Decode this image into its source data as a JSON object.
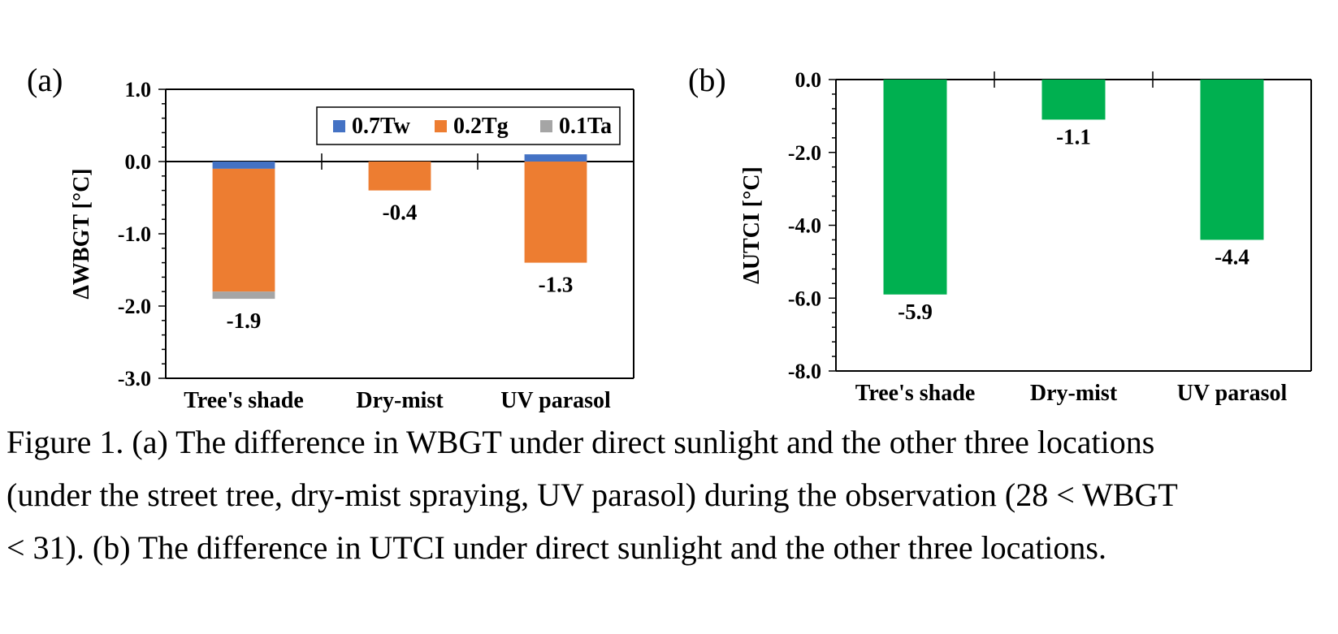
{
  "colors": {
    "tw": "#4472c4",
    "tg": "#ed7d31",
    "ta": "#a5a5a5",
    "utci": "#00b050",
    "axis": "#000000"
  },
  "chart_data": [
    {
      "panel": "(a)",
      "type": "bar",
      "stacked": true,
      "categories": [
        "Tree's shade",
        "Dry-mist",
        "UV parasol"
      ],
      "series": [
        {
          "name": "0.7Tw",
          "values": [
            -0.1,
            0.0,
            0.1
          ]
        },
        {
          "name": "0.2Tg",
          "values": [
            -1.7,
            -0.4,
            -1.4
          ]
        },
        {
          "name": "0.1Ta",
          "values": [
            -0.1,
            0.0,
            0.0
          ]
        }
      ],
      "totals": [
        "-1.9",
        "-0.4",
        "-1.3"
      ],
      "ylabel": "ΔWBGT  [°C]",
      "ylim": [
        -3.0,
        1.0
      ],
      "yticks": [
        "1.0",
        "0.0",
        "-1.0",
        "-2.0",
        "-3.0"
      ],
      "legend": "top-right",
      "grid": false
    },
    {
      "panel": "(b)",
      "type": "bar",
      "categories": [
        "Tree's shade",
        "Dry-mist",
        "UV parasol"
      ],
      "values": [
        -5.9,
        -1.1,
        -4.4
      ],
      "labels": [
        "-5.9",
        "-1.1",
        "-4.4"
      ],
      "ylabel": "ΔUTCI [°C]",
      "ylim": [
        -8.0,
        0.0
      ],
      "yticks": [
        "0.0",
        "-2.0",
        "-4.0",
        "-6.0",
        "-8.0"
      ],
      "grid": false
    }
  ],
  "caption": [
    "Figure 1. (a) The difference in WBGT under direct sunlight and the other three locations",
    "(under the street tree, dry-mist spraying, UV parasol) during the observation (28 < WBGT",
    "< 31). (b) The difference in UTCI under direct sunlight and the other three locations."
  ]
}
